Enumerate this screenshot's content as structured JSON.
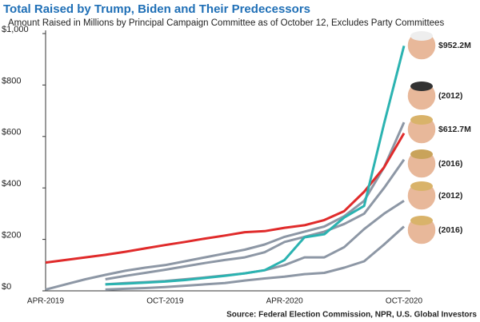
{
  "chart_data": {
    "type": "line",
    "title": "Total Raised by Trump, Biden and Their Predecessors",
    "subtitle": "Amount Raised in Millions by Principal Campaign Committee as of October 12, Excludes Party Committees",
    "source": "Source: Federal Election Commission, NPR, U.S. Global Investors",
    "categories": [
      "APR-2019",
      null,
      null,
      null,
      null,
      null,
      "OCT-2019",
      null,
      null,
      null,
      null,
      null,
      "APR-2020",
      null,
      null,
      null,
      null,
      null,
      "OCT-2020"
    ],
    "ylim": [
      0,
      1000
    ],
    "yticks": [
      {
        "value": 0,
        "label": "$0"
      },
      {
        "value": 200,
        "label": "$200"
      },
      {
        "value": 400,
        "label": "$400"
      },
      {
        "value": 600,
        "label": "$600"
      },
      {
        "value": 800,
        "label": "$800"
      },
      {
        "value": 1000,
        "label": "$1,000"
      }
    ],
    "series": [
      {
        "name": "$952.2M",
        "color": "#2bb3b1",
        "values": [
          null,
          null,
          null,
          25,
          28,
          32,
          36,
          42,
          50,
          58,
          68,
          80,
          120,
          208,
          220,
          285,
          330,
          650,
          952.2
        ]
      },
      {
        "name": "(2012)",
        "color": "#8d97a5",
        "values": [
          5,
          25,
          45,
          62,
          78,
          90,
          100,
          115,
          130,
          145,
          160,
          180,
          210,
          230,
          250,
          290,
          350,
          480,
          655
        ]
      },
      {
        "name": "$612.7M",
        "color": "#e02b2b",
        "values": [
          110,
          120,
          130,
          140,
          152,
          165,
          178,
          190,
          203,
          215,
          228,
          232,
          245,
          255,
          275,
          310,
          385,
          480,
          612.7
        ]
      },
      {
        "name": "(2016)",
        "color": "#8d97a5",
        "values": [
          null,
          null,
          null,
          45,
          58,
          70,
          82,
          95,
          108,
          120,
          130,
          150,
          190,
          210,
          230,
          260,
          300,
          400,
          510
        ]
      },
      {
        "name": "(2012)",
        "color": "#8d97a5",
        "values": [
          null,
          null,
          null,
          25,
          30,
          34,
          38,
          45,
          52,
          60,
          68,
          80,
          100,
          130,
          130,
          170,
          240,
          300,
          350
        ]
      },
      {
        "name": "(2016)",
        "color": "#8d97a5",
        "values": [
          null,
          null,
          null,
          5,
          8,
          11,
          15,
          20,
          25,
          30,
          40,
          48,
          55,
          65,
          70,
          90,
          115,
          180,
          250
        ]
      }
    ]
  }
}
